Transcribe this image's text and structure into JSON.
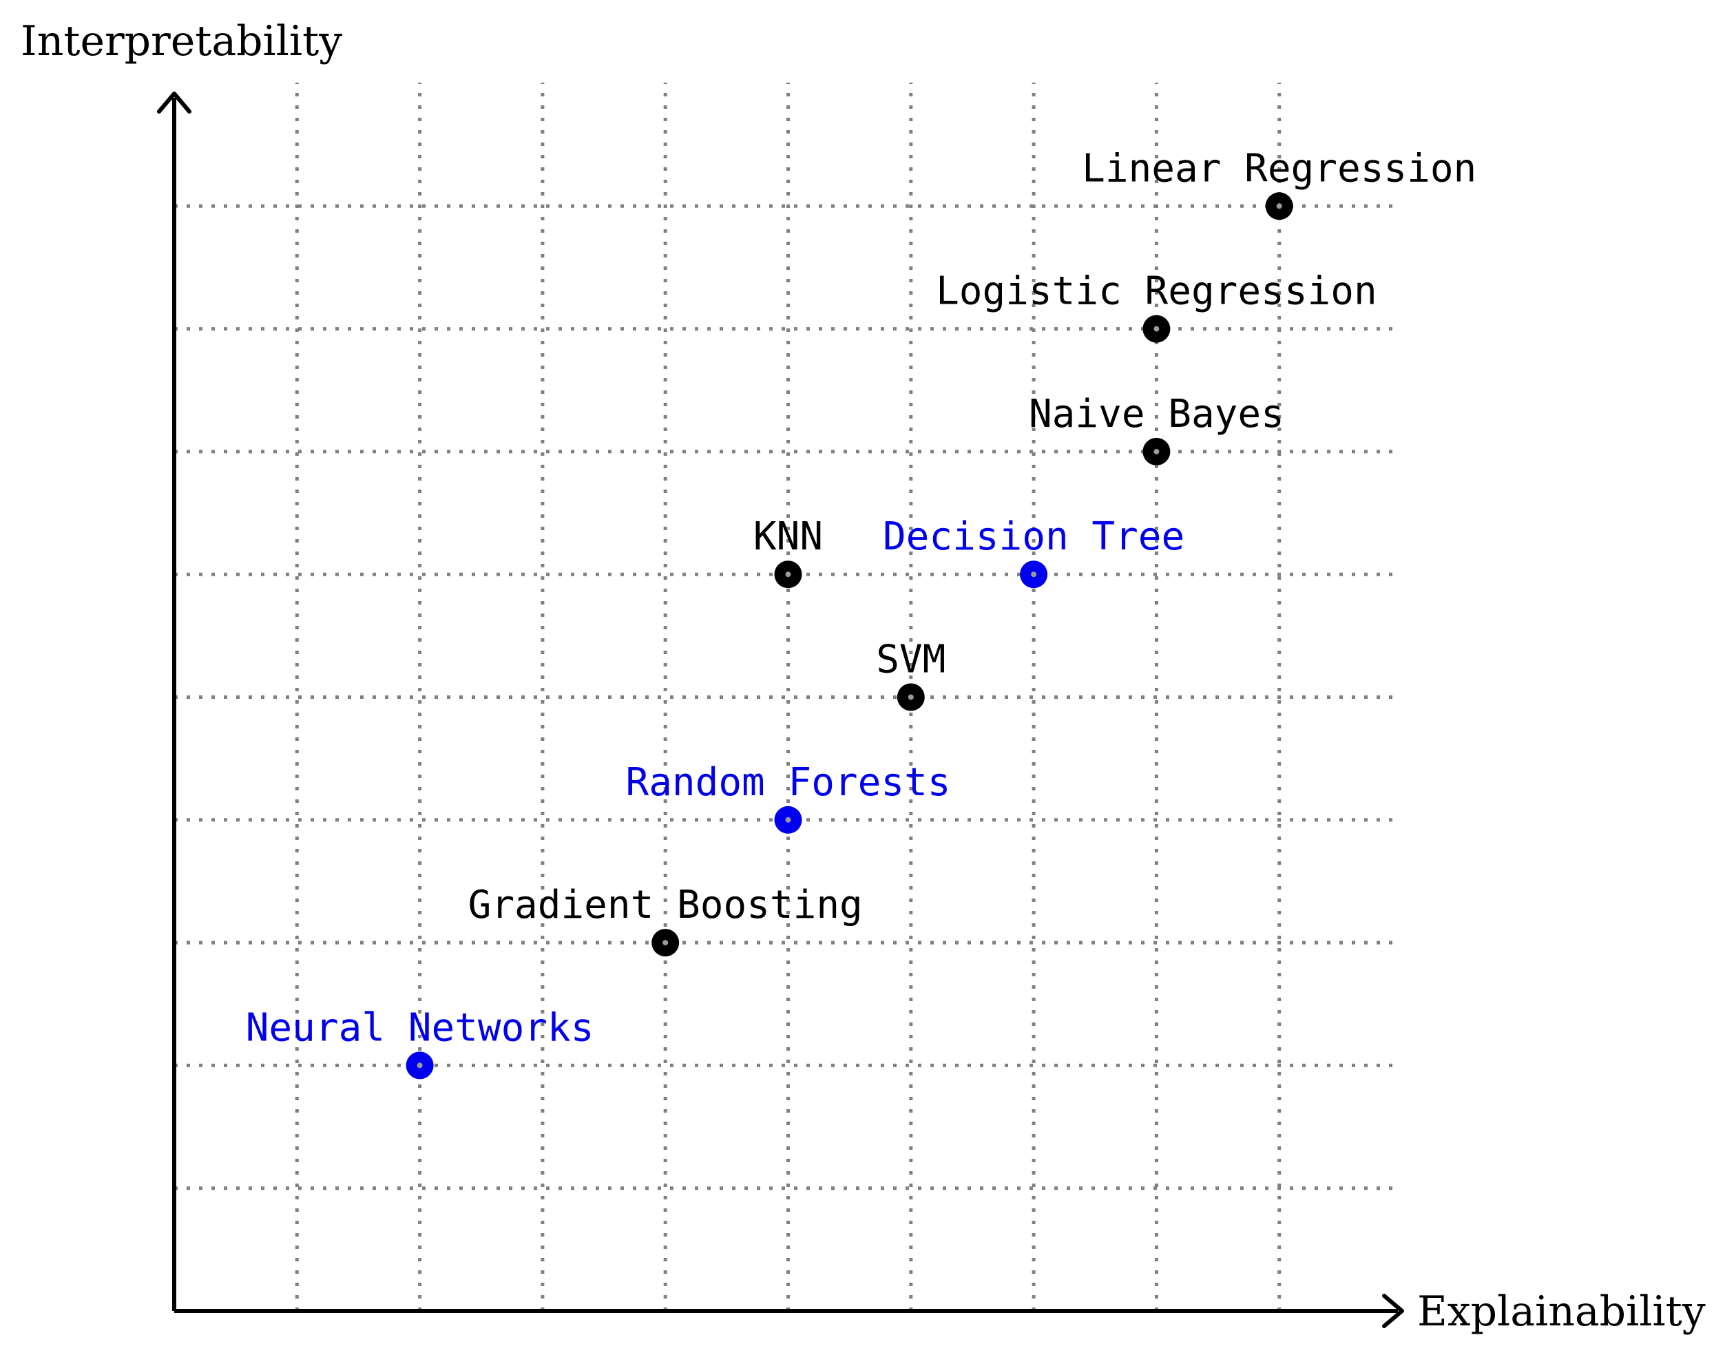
{
  "chart_data": {
    "type": "scatter",
    "title": "",
    "xlabel": "Explainability",
    "ylabel": "Interpretability",
    "xlim": [
      0,
      10
    ],
    "ylim": [
      0,
      10
    ],
    "grid": true,
    "grid_style": "dotted",
    "x_ticks": [
      1,
      2,
      3,
      4,
      5,
      6,
      7,
      8,
      9
    ],
    "y_ticks": [
      1,
      2,
      3,
      4,
      5,
      6,
      7,
      8,
      9
    ],
    "points": [
      {
        "label": "Linear Regression",
        "x": 9,
        "y": 9,
        "color": "#000000"
      },
      {
        "label": "Logistic Regression",
        "x": 8,
        "y": 8,
        "color": "#000000"
      },
      {
        "label": "Naive Bayes",
        "x": 8,
        "y": 7,
        "color": "#000000"
      },
      {
        "label": "KNN",
        "x": 5,
        "y": 6,
        "color": "#000000"
      },
      {
        "label": "Decision Tree",
        "x": 7,
        "y": 6,
        "color": "#0000ee"
      },
      {
        "label": "SVM",
        "x": 6,
        "y": 5,
        "color": "#000000"
      },
      {
        "label": "Random Forests",
        "x": 5,
        "y": 4,
        "color": "#0000ee"
      },
      {
        "label": "Gradient Boosting",
        "x": 4,
        "y": 3,
        "color": "#000000"
      },
      {
        "label": "Neural Networks",
        "x": 2,
        "y": 2,
        "color": "#0000ee"
      }
    ]
  }
}
